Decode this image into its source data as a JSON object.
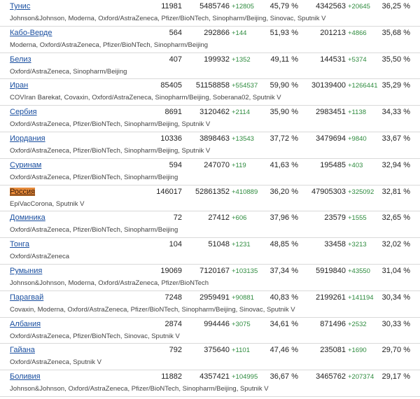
{
  "rows": [
    {
      "country": "Тунис",
      "population": "11981",
      "doses": "5485746",
      "doses_delta": "+12805",
      "pct_once": "45,79 %",
      "fully": "4342563",
      "fully_delta": "+20645",
      "pct_full": "36,25 %",
      "vaccines": "Johnson&Johnson, Moderna, Oxford/AstraZeneca, Pfizer/BioNTech, Sinopharm/Beijing, Sinovac, Sputnik V"
    },
    {
      "country": "Кабо-Верде",
      "population": "564",
      "doses": "292866",
      "doses_delta": "+144",
      "pct_once": "51,93 %",
      "fully": "201213",
      "fully_delta": "+4866",
      "pct_full": "35,68 %",
      "vaccines": "Moderna, Oxford/AstraZeneca, Pfizer/BioNTech, Sinopharm/Beijing"
    },
    {
      "country": "Белиз",
      "population": "407",
      "doses": "199932",
      "doses_delta": "+1352",
      "pct_once": "49,11 %",
      "fully": "144531",
      "fully_delta": "+5374",
      "pct_full": "35,50 %",
      "vaccines": "Oxford/AstraZeneca, Sinopharm/Beijing"
    },
    {
      "country": "Иран",
      "population": "85405",
      "doses": "51158858",
      "doses_delta": "+554537",
      "pct_once": "59,90 %",
      "fully": "30139400",
      "fully_delta": "+1266441",
      "pct_full": "35,29 %",
      "vaccines": "COVIran Barekat, Covaxin, Oxford/AstraZeneca, Sinopharm/Beijing, Soberana02, Sputnik V"
    },
    {
      "country": "Сербия",
      "population": "8691",
      "doses": "3120462",
      "doses_delta": "+2114",
      "pct_once": "35,90 %",
      "fully": "2983451",
      "fully_delta": "+1138",
      "pct_full": "34,33 %",
      "vaccines": "Oxford/AstraZeneca, Pfizer/BioNTech, Sinopharm/Beijing, Sputnik V"
    },
    {
      "country": "Иордания",
      "population": "10336",
      "doses": "3898463",
      "doses_delta": "+13543",
      "pct_once": "37,72 %",
      "fully": "3479694",
      "fully_delta": "+9840",
      "pct_full": "33,67 %",
      "vaccines": "Oxford/AstraZeneca, Pfizer/BioNTech, Sinopharm/Beijing, Sputnik V"
    },
    {
      "country": "Суринам",
      "population": "594",
      "doses": "247070",
      "doses_delta": "+119",
      "pct_once": "41,63 %",
      "fully": "195485",
      "fully_delta": "+403",
      "pct_full": "32,94 %",
      "vaccines": "Oxford/AstraZeneca, Pfizer/BioNTech, Sinopharm/Beijing"
    },
    {
      "country": "Россия",
      "population": "146017",
      "doses": "52861352",
      "doses_delta": "+410889",
      "pct_once": "36,20 %",
      "fully": "47905303",
      "fully_delta": "+325092",
      "pct_full": "32,81 %",
      "vaccines": "EpiVacCorona, Sputnik V",
      "selected": true
    },
    {
      "country": "Доминика",
      "population": "72",
      "doses": "27412",
      "doses_delta": "+606",
      "pct_once": "37,96 %",
      "fully": "23579",
      "fully_delta": "+1555",
      "pct_full": "32,65 %",
      "vaccines": "Oxford/AstraZeneca, Pfizer/BioNTech, Sinopharm/Beijing"
    },
    {
      "country": "Тонга",
      "population": "104",
      "doses": "51048",
      "doses_delta": "+1231",
      "pct_once": "48,85 %",
      "fully": "33458",
      "fully_delta": "+3213",
      "pct_full": "32,02 %",
      "vaccines": "Oxford/AstraZeneca"
    },
    {
      "country": "Румыния",
      "population": "19069",
      "doses": "7120167",
      "doses_delta": "+103135",
      "pct_once": "37,34 %",
      "fully": "5919840",
      "fully_delta": "+43550",
      "pct_full": "31,04 %",
      "vaccines": "Johnson&Johnson, Moderna, Oxford/AstraZeneca, Pfizer/BioNTech"
    },
    {
      "country": "Парагвай",
      "population": "7248",
      "doses": "2959491",
      "doses_delta": "+90881",
      "pct_once": "40,83 %",
      "fully": "2199261",
      "fully_delta": "+141194",
      "pct_full": "30,34 %",
      "vaccines": "Covaxin, Moderna, Oxford/AstraZeneca, Pfizer/BioNTech, Sinopharm/Beijing, Sinovac, Sputnik V"
    },
    {
      "country": "Албания",
      "population": "2874",
      "doses": "994446",
      "doses_delta": "+3075",
      "pct_once": "34,61 %",
      "fully": "871496",
      "fully_delta": "+2532",
      "pct_full": "30,33 %",
      "vaccines": "Oxford/AstraZeneca, Pfizer/BioNTech, Sinovac, Sputnik V"
    },
    {
      "country": "Гайана",
      "population": "792",
      "doses": "375640",
      "doses_delta": "+1101",
      "pct_once": "47,46 %",
      "fully": "235081",
      "fully_delta": "+1690",
      "pct_full": "29,70 %",
      "vaccines": "Oxford/AstraZeneca, Sputnik V"
    },
    {
      "country": "Боливия",
      "population": "11882",
      "doses": "4357421",
      "doses_delta": "+104995",
      "pct_once": "36,67 %",
      "fully": "3465762",
      "fully_delta": "+207374",
      "pct_full": "29,17 %",
      "vaccines": "Johnson&Johnson, Oxford/AstraZeneca, Pfizer/BioNTech, Sinopharm/Beijing, Sputnik V"
    }
  ]
}
